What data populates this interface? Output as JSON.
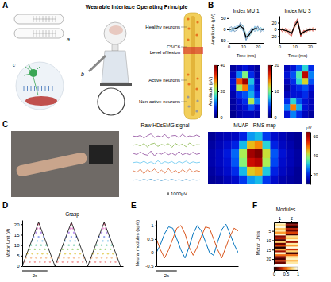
{
  "panel_labels": [
    "A",
    "B",
    "C",
    "D",
    "E",
    "F"
  ],
  "diagram": {
    "title": "Wearable Interface Operating Principle",
    "sublabels": [
      "a",
      "b",
      "c"
    ],
    "cord_labels": [
      "Healthy neurons",
      "C5/C6",
      "Level of lesion",
      "Active neurons",
      "Non-active neurons"
    ]
  },
  "chart_data": [
    {
      "type": "line",
      "title": "Index MU 1",
      "xlabel": "Time (ms)",
      "ylabel": "Amplitude (μV)",
      "x": [
        0,
        2,
        4,
        6,
        8,
        10,
        12,
        14,
        16,
        18,
        20,
        22,
        24
      ],
      "xlim": [
        0,
        24
      ],
      "xticks": [
        0,
        10,
        20
      ],
      "ylim": [
        -60,
        60
      ],
      "yticks": [
        -50,
        0,
        50
      ],
      "series": [
        {
          "color": "#2c7fb8",
          "values": [
            10,
            -8,
            12,
            2,
            25,
            -5,
            -50,
            -15,
            8,
            -10,
            12,
            -6,
            8
          ]
        },
        {
          "color": "#41b6c4",
          "values": [
            -12,
            6,
            -5,
            15,
            5,
            20,
            -20,
            -35,
            -15,
            12,
            -8,
            10,
            -5
          ]
        },
        {
          "color": "#1d4e89",
          "values": [
            5,
            12,
            -10,
            -2,
            30,
            12,
            -45,
            -30,
            5,
            -2,
            15,
            -12,
            3
          ]
        },
        {
          "color": "#5aa9e6",
          "values": [
            -6,
            -10,
            8,
            18,
            10,
            -8,
            -30,
            -10,
            -12,
            15,
            -5,
            6,
            -10
          ]
        },
        {
          "color": "#000000",
          "values": [
            0,
            1,
            3,
            8,
            15,
            5,
            -35,
            -25,
            -5,
            4,
            2,
            1,
            0
          ]
        }
      ]
    },
    {
      "type": "line",
      "title": "Index MU 3",
      "xlabel": "Time (ms)",
      "x": [
        0,
        2,
        4,
        6,
        8,
        10,
        12,
        14,
        16,
        18,
        20,
        22,
        24
      ],
      "xlim": [
        0,
        24
      ],
      "xticks": [
        0,
        10,
        20
      ],
      "ylim": [
        -40,
        40
      ],
      "yticks": [
        -20,
        0,
        20
      ],
      "series": [
        {
          "color": "#d7301f",
          "values": [
            6,
            -8,
            4,
            -14,
            -20,
            18,
            32,
            -22,
            -2,
            -9,
            5,
            -6,
            4
          ]
        },
        {
          "color": "#ef6548",
          "values": [
            -5,
            5,
            -9,
            2,
            -6,
            4,
            20,
            -8,
            -14,
            3,
            -7,
            6,
            -4
          ]
        },
        {
          "color": "#b30000",
          "values": [
            3,
            -6,
            2,
            -10,
            -18,
            14,
            30,
            -20,
            -4,
            -6,
            3,
            -3,
            2
          ]
        },
        {
          "color": "#fc8d59",
          "values": [
            -4,
            3,
            -7,
            -3,
            -8,
            6,
            18,
            -11,
            -12,
            2,
            -5,
            4,
            -2
          ]
        },
        {
          "color": "#000000",
          "values": [
            0,
            -1,
            -3,
            -6,
            -12,
            10,
            25,
            -15,
            -8,
            -3,
            -1,
            0,
            0
          ]
        }
      ]
    },
    {
      "type": "heatmap",
      "colorbar_label": "Amplitude (μV)",
      "cells": [
        [
          2,
          4,
          6,
          4,
          2
        ],
        [
          4,
          12,
          20,
          8,
          3
        ],
        [
          6,
          30,
          38,
          15,
          4
        ],
        [
          5,
          22,
          28,
          12,
          5
        ],
        [
          3,
          8,
          10,
          14,
          8
        ],
        [
          2,
          5,
          8,
          22,
          12
        ],
        [
          2,
          4,
          6,
          10,
          6
        ],
        [
          1,
          3,
          4,
          4,
          3
        ]
      ],
      "color_range": [
        0,
        40
      ],
      "color_ticks": [
        0,
        20,
        40
      ]
    },
    {
      "type": "heatmap",
      "cells": [
        [
          2,
          3,
          5,
          8,
          4
        ],
        [
          3,
          5,
          9,
          18,
          6
        ],
        [
          2,
          4,
          8,
          12,
          5
        ],
        [
          1,
          3,
          4,
          5,
          3
        ],
        [
          2,
          3,
          3,
          4,
          2
        ],
        [
          4,
          8,
          5,
          3,
          2
        ],
        [
          6,
          14,
          7,
          3,
          2
        ],
        [
          3,
          6,
          4,
          2,
          1
        ]
      ],
      "color_range": [
        0,
        20
      ],
      "color_ticks": [
        0,
        10,
        20
      ]
    },
    {
      "type": "line",
      "title": "Raw HDsEMG signal",
      "x": [
        0,
        1,
        2,
        3,
        4,
        5,
        6,
        7,
        8,
        9,
        10,
        11,
        12,
        13,
        14,
        15,
        16,
        17,
        18,
        19
      ],
      "xlim": [
        0,
        19
      ],
      "ylim": [
        -1500,
        1500
      ],
      "scale_bar": {
        "value": 1000,
        "label": "1000μV"
      },
      "series": [
        {
          "color": "#7e2f8e",
          "values": [
            50,
            -120,
            300,
            -600,
            200,
            800,
            -400,
            100,
            -250,
            600,
            -700,
            150,
            300,
            -500,
            700,
            -300,
            100,
            -150,
            400,
            -100
          ]
        },
        {
          "color": "#77ac30",
          "values": [
            -80,
            200,
            -350,
            500,
            -700,
            300,
            600,
            -500,
            200,
            -100,
            450,
            -800,
            500,
            -200,
            300,
            -600,
            700,
            -250,
            100,
            50
          ]
        },
        {
          "color": "#7e2f8e",
          "values": [
            100,
            -300,
            600,
            -200,
            -500,
            900,
            -700,
            300,
            -150,
            500,
            -350,
            200,
            -600,
            800,
            -400,
            150,
            -300,
            500,
            -200,
            80
          ]
        },
        {
          "color": "#4dbeee",
          "values": [
            -60,
            150,
            -250,
            400,
            -300,
            200,
            -450,
            600,
            -350,
            250,
            -150,
            300,
            -500,
            350,
            -200,
            450,
            -300,
            200,
            -100,
            60
          ]
        },
        {
          "color": "#d95319",
          "values": [
            120,
            -400,
            700,
            -900,
            500,
            -300,
            800,
            -600,
            400,
            -700,
            900,
            -500,
            300,
            -800,
            600,
            -400,
            700,
            -300,
            200,
            -100
          ]
        },
        {
          "color": "#0072bd",
          "values": [
            -40,
            80,
            -150,
            200,
            -100,
            250,
            -180,
            120,
            -220,
            160,
            -90,
            200,
            -150,
            100,
            -200,
            180,
            -120,
            90,
            -60,
            30
          ]
        }
      ]
    },
    {
      "type": "heatmap",
      "title": "MUAP - RMS map",
      "colorbar_label": "μV",
      "cells": [
        [
          12,
          14,
          15,
          16,
          20,
          28,
          30,
          22,
          17,
          15,
          13,
          12
        ],
        [
          13,
          15,
          17,
          20,
          30,
          45,
          48,
          32,
          20,
          16,
          14,
          12
        ],
        [
          14,
          16,
          19,
          25,
          40,
          62,
          65,
          42,
          24,
          18,
          15,
          13
        ],
        [
          14,
          16,
          18,
          24,
          38,
          58,
          60,
          40,
          23,
          17,
          15,
          13
        ],
        [
          13,
          15,
          17,
          21,
          30,
          44,
          46,
          31,
          20,
          16,
          14,
          12
        ],
        [
          12,
          13,
          15,
          17,
          22,
          28,
          30,
          22,
          17,
          14,
          13,
          12
        ]
      ],
      "color_range": [
        10,
        65
      ],
      "color_ticks": [
        20,
        40,
        60
      ]
    },
    {
      "type": "scatter",
      "title": "Grasp",
      "ylabel": "Motor Unit (#)",
      "xlim": [
        0,
        8
      ],
      "ylim": [
        0,
        22
      ],
      "yticks": [
        0,
        5,
        10,
        15,
        20
      ],
      "motor_units": [
        2,
        4,
        6,
        8,
        10,
        12,
        14,
        16,
        18,
        20
      ],
      "spike_times": [
        [
          0.2,
          0.6,
          1.0,
          1.4,
          1.8,
          2.2,
          2.8,
          3.2,
          3.6,
          4.0,
          4.4,
          4.8,
          5.4,
          5.8,
          6.2,
          6.6,
          7.0,
          7.4
        ],
        [
          0.3,
          0.7,
          1.1,
          1.5,
          1.9,
          2.3,
          2.9,
          3.3,
          3.7,
          4.1,
          4.5,
          4.9,
          5.5,
          5.9,
          6.3,
          6.7,
          7.1,
          7.5
        ],
        [
          0.4,
          0.8,
          1.2,
          1.6,
          2.0,
          3.0,
          3.4,
          3.8,
          4.2,
          4.6,
          5.6,
          6.0,
          6.4,
          6.8,
          7.2
        ],
        [
          0.6,
          1.0,
          1.4,
          1.8,
          3.2,
          3.6,
          4.0,
          4.4,
          5.8,
          6.2,
          6.6,
          7.0
        ],
        [
          0.7,
          1.1,
          1.5,
          1.9,
          3.3,
          3.7,
          4.1,
          4.5,
          5.9,
          6.3,
          6.7,
          7.1
        ],
        [
          0.8,
          1.2,
          1.6,
          3.4,
          3.8,
          4.2,
          6.0,
          6.4,
          6.8
        ],
        [
          0.9,
          1.3,
          1.7,
          3.5,
          3.9,
          4.3,
          6.1,
          6.5,
          6.9
        ],
        [
          1.1,
          1.5,
          3.7,
          4.1,
          6.3,
          6.7
        ],
        [
          1.2,
          1.4,
          3.8,
          4.0,
          6.4,
          6.6
        ],
        [
          1.3,
          3.9,
          6.5
        ]
      ],
      "colors": [
        "#f4a6a6",
        "#f7c59f",
        "#e8d36a",
        "#a8d98a",
        "#7fd3b4",
        "#8cc8ee",
        "#99a9f0",
        "#bb97ee",
        "#ea96d6",
        "#f08aa6"
      ],
      "force": {
        "color": "#000000",
        "x": [
          0,
          1.3,
          2.6,
          3.9,
          5.2,
          6.5,
          7.8
        ],
        "values": [
          0,
          21,
          0,
          21,
          0,
          21,
          0
        ]
      },
      "scale_bar": {
        "value": 2,
        "label": "2s"
      }
    },
    {
      "type": "line",
      "ylabel": "Neural modules (sp/s)",
      "x": [
        0,
        0.4,
        0.8,
        1.2,
        1.6,
        2.0,
        2.4,
        2.8,
        3.2,
        3.6,
        4.0,
        4.4,
        4.8,
        5.2,
        5.6,
        6.0,
        6.4,
        6.8,
        7.2,
        7.6,
        8.0
      ],
      "xlim": [
        0,
        8
      ],
      "ylim": [
        -0.5,
        1.2
      ],
      "yticks": [
        -0.5,
        0,
        0.5,
        1
      ],
      "series": [
        {
          "color": "#0072bd",
          "values": [
            0,
            0.3,
            0.7,
            0.95,
            0.9,
            0.5,
            0.1,
            -0.2,
            0.2,
            0.7,
            1.0,
            0.8,
            0.4,
            0,
            -0.1,
            0.4,
            0.85,
            1.05,
            0.7,
            0.3,
            0
          ]
        },
        {
          "color": "#d95319",
          "values": [
            0.5,
            0.1,
            -0.2,
            0.1,
            0.5,
            0.9,
            1.0,
            0.7,
            0.2,
            -0.1,
            0.2,
            0.6,
            0.95,
            0.9,
            0.5,
            0.1,
            -0.2,
            0.2,
            0.6,
            0.9,
            0.8
          ]
        }
      ],
      "scale_bar": {
        "value": 2,
        "label": "2s"
      }
    },
    {
      "type": "heatmap",
      "title": "Modules",
      "categories": [
        "1",
        "2"
      ],
      "ylabel": "Motor Units",
      "ylim": [
        0.5,
        22.5
      ],
      "yticks": [
        5,
        10,
        15,
        20
      ],
      "cells": [
        [
          0.9,
          0.1
        ],
        [
          0.8,
          0.2
        ],
        [
          0.95,
          0.05
        ],
        [
          0.7,
          0.3
        ],
        [
          0.85,
          0.15
        ],
        [
          0.6,
          0.4
        ],
        [
          0.9,
          0.1
        ],
        [
          0.2,
          0.8
        ],
        [
          0.3,
          0.7
        ],
        [
          0.1,
          0.9
        ],
        [
          0.75,
          0.25
        ],
        [
          0.15,
          0.85
        ],
        [
          0.4,
          0.6
        ],
        [
          0.05,
          0.95
        ],
        [
          0.65,
          0.35
        ],
        [
          0.25,
          0.75
        ],
        [
          0.9,
          0.1
        ],
        [
          0.5,
          0.5
        ],
        [
          0.2,
          0.8
        ],
        [
          0.1,
          0.9
        ],
        [
          0.35,
          0.65
        ],
        [
          0.15,
          0.85
        ]
      ],
      "color_range": [
        0,
        1
      ],
      "color_ticks": [
        0,
        0.5,
        1
      ]
    }
  ]
}
